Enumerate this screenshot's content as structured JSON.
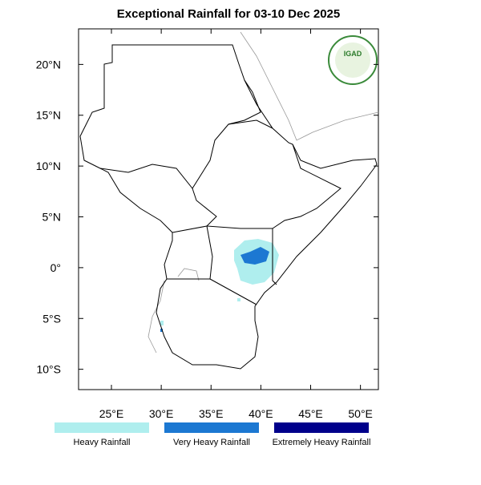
{
  "map": {
    "title": "Exceptional Rainfall for 03-10 Dec 2025",
    "xlim": [
      21.7,
      51.8
    ],
    "ylim": [
      -12,
      23.5
    ],
    "xticks": [
      {
        "value": 25,
        "label": "25°E"
      },
      {
        "value": 30,
        "label": "30°E"
      },
      {
        "value": 35,
        "label": "35°E"
      },
      {
        "value": 40,
        "label": "40°E"
      },
      {
        "value": 45,
        "label": "45°E"
      },
      {
        "value": 50,
        "label": "50°E"
      }
    ],
    "yticks": [
      {
        "value": 20,
        "label": "20°N"
      },
      {
        "value": 15,
        "label": "15°N"
      },
      {
        "value": 10,
        "label": "10°N"
      },
      {
        "value": 5,
        "label": "5°N"
      },
      {
        "value": 0,
        "label": "0°"
      },
      {
        "value": -5,
        "label": "5°S"
      },
      {
        "value": -10,
        "label": "10°S"
      }
    ],
    "legend": [
      {
        "label": "Heavy Rainfall",
        "color": "#afeeee"
      },
      {
        "label": "Very Heavy Rainfall",
        "color": "#1c78d2"
      },
      {
        "label": "Extremely Heavy Rainfall",
        "color": "#00008b"
      }
    ],
    "logo": "IGAD"
  }
}
